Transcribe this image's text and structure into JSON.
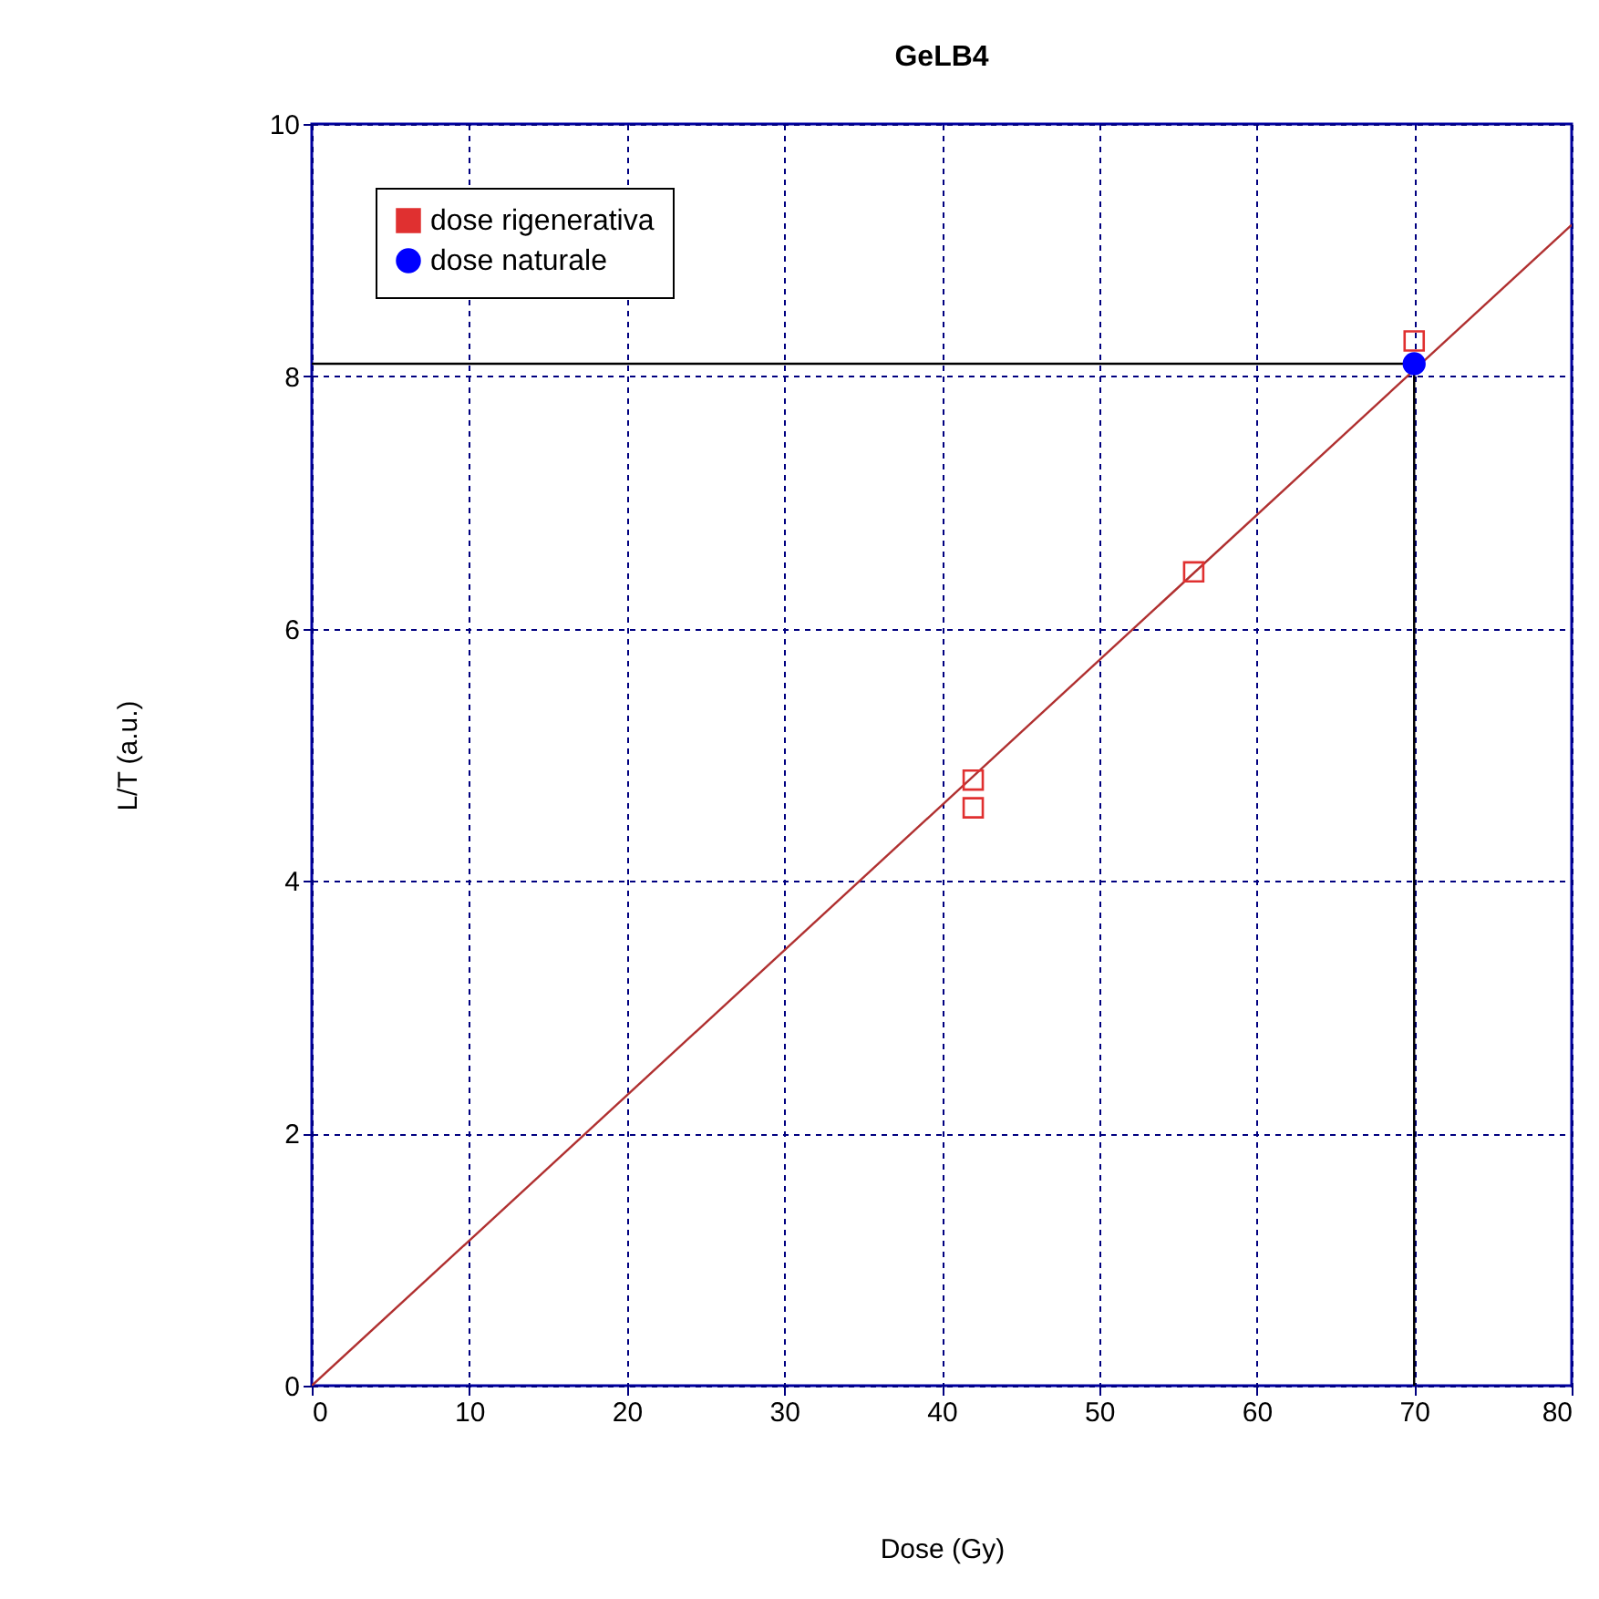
{
  "chart_data": {
    "type": "scatter",
    "title": "GeLB4",
    "xlabel": "Dose (Gy)",
    "ylabel": "L/T (a.u.)",
    "xlim": [
      0,
      80
    ],
    "xticks": [
      0,
      10,
      20,
      30,
      40,
      50,
      60,
      70,
      80
    ],
    "ylim": [
      0,
      10
    ],
    "yticks": [
      0,
      2,
      4,
      6,
      8,
      10
    ],
    "grid": true,
    "legend": "top left",
    "series": [
      {
        "type": "line",
        "color": "#b03030",
        "x": [
          0,
          80
        ],
        "values": [
          0,
          9.2
        ]
      },
      {
        "name": "dose rigenerativa",
        "type": "scatter",
        "marker": "square",
        "color": "#e03030",
        "x": [
          42,
          42,
          56,
          70
        ],
        "values": [
          4.8,
          4.58,
          6.45,
          8.28
        ]
      },
      {
        "name": "dose naturale",
        "type": "scatter",
        "marker": "circle",
        "color": "#0000ff",
        "x": [
          70
        ],
        "values": [
          8.1
        ]
      },
      {
        "type": "line",
        "color": "#000000",
        "x": [
          0,
          70,
          70
        ],
        "values": [
          8.1,
          8.1,
          0
        ]
      }
    ]
  }
}
